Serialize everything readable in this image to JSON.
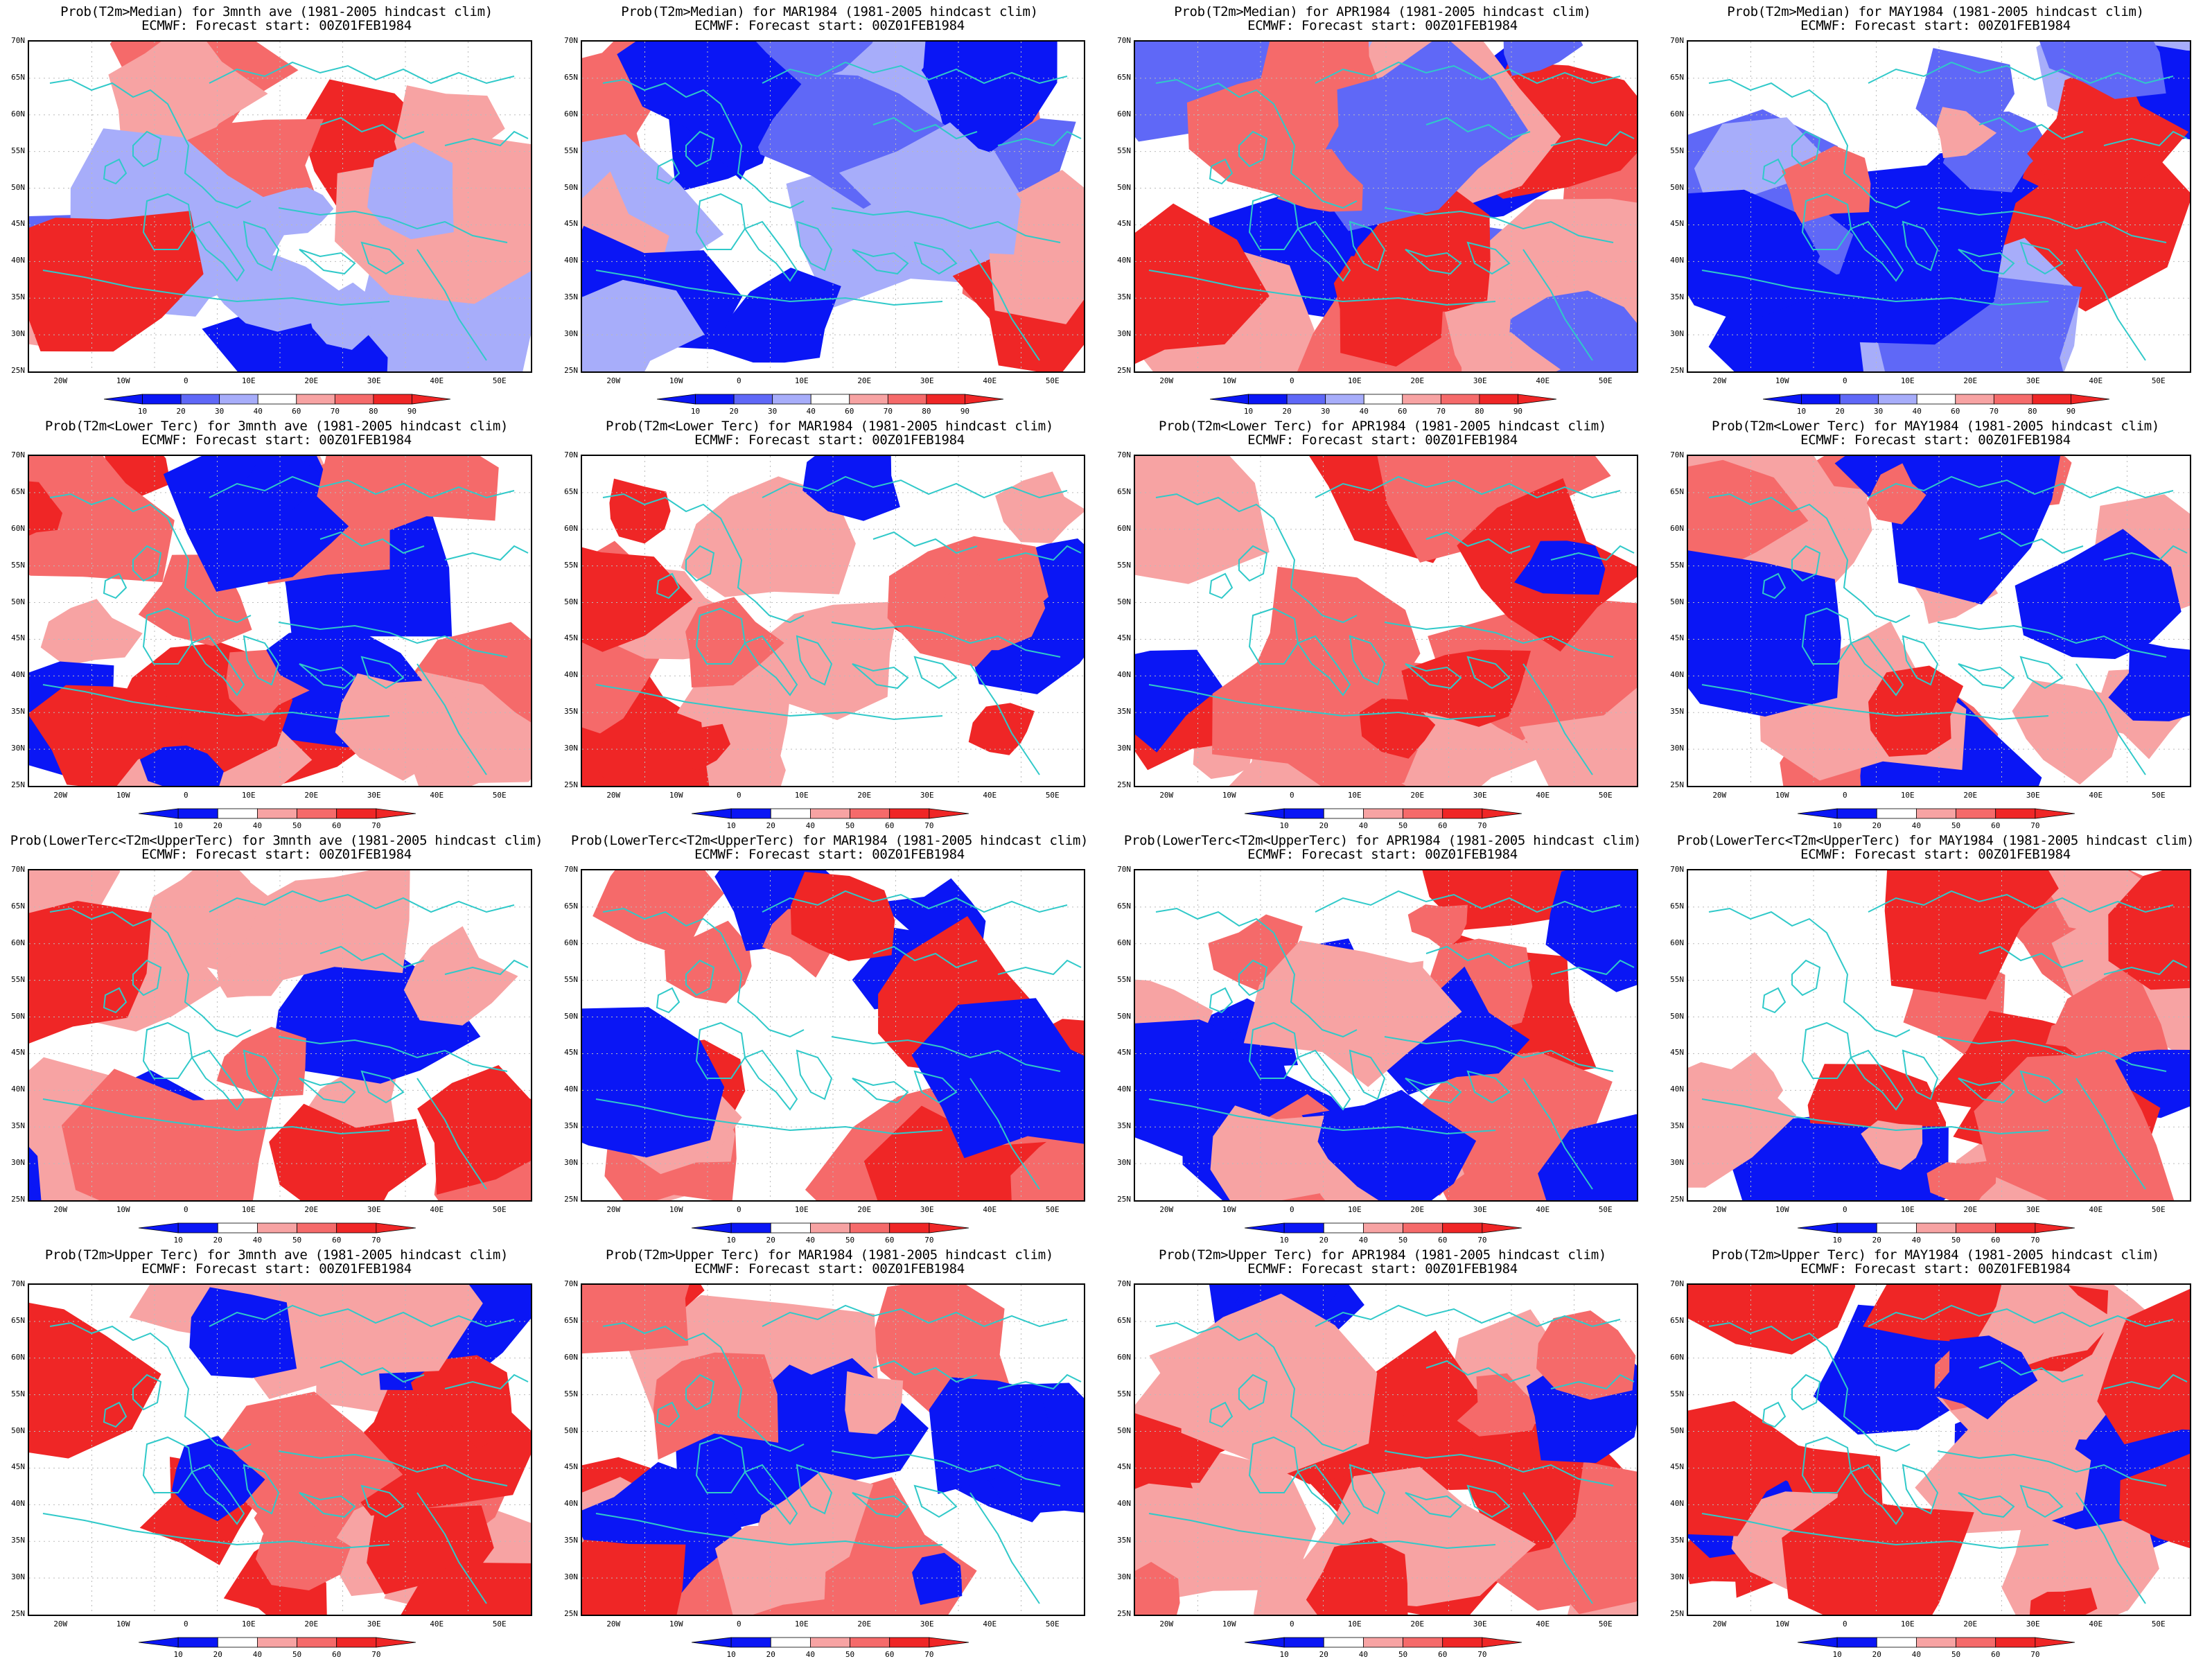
{
  "colors": {
    "deep_blue": "#0a16f5",
    "mid_blue": "#5f68f7",
    "light_blue": "#a7adfa",
    "light_red": "#f7a3a3",
    "mid_red": "#f56a6a",
    "deep_red": "#ef2626",
    "coast": "#30c9c9",
    "grid": "#bbbbbb"
  },
  "map": {
    "lat_labels": [
      "70N",
      "65N",
      "60N",
      "55N",
      "50N",
      "45N",
      "40N",
      "35N",
      "30N",
      "25N"
    ],
    "lon_labels": [
      "20W",
      "10W",
      "0",
      "10E",
      "20E",
      "30E",
      "40E",
      "50E"
    ]
  },
  "colorbars": {
    "median": [
      "10",
      "20",
      "30",
      "40",
      "60",
      "70",
      "80",
      "90"
    ],
    "tercile": [
      "10",
      "20",
      "40",
      "50",
      "60",
      "70"
    ]
  },
  "rows": [
    {
      "kind": "median",
      "panels": [
        {
          "title": "Prob(T2m>Median) for 3mnth ave (1981-2005 hindcast clim)",
          "subtitle": "ECMWF: Forecast start: 00Z01FEB1984"
        },
        {
          "title": "Prob(T2m>Median) for MAR1984 (1981-2005 hindcast clim)",
          "subtitle": "ECMWF: Forecast start: 00Z01FEB1984"
        },
        {
          "title": "Prob(T2m>Median) for APR1984 (1981-2005 hindcast clim)",
          "subtitle": "ECMWF: Forecast start: 00Z01FEB1984"
        },
        {
          "title": "Prob(T2m>Median) for MAY1984 (1981-2005 hindcast clim)",
          "subtitle": "ECMWF: Forecast start: 00Z01FEB1984"
        }
      ]
    },
    {
      "kind": "tercile",
      "panels": [
        {
          "title": "Prob(T2m<Lower Terc) for 3mnth ave (1981-2005 hindcast clim)",
          "subtitle": "ECMWF: Forecast start: 00Z01FEB1984"
        },
        {
          "title": "Prob(T2m<Lower Terc) for MAR1984 (1981-2005 hindcast clim)",
          "subtitle": "ECMWF: Forecast start: 00Z01FEB1984"
        },
        {
          "title": "Prob(T2m<Lower Terc) for APR1984 (1981-2005 hindcast clim)",
          "subtitle": "ECMWF: Forecast start: 00Z01FEB1984"
        },
        {
          "title": "Prob(T2m<Lower Terc) for MAY1984 (1981-2005 hindcast clim)",
          "subtitle": "ECMWF: Forecast start: 00Z01FEB1984"
        }
      ]
    },
    {
      "kind": "tercile",
      "panels": [
        {
          "title": "Prob(LowerTerc<T2m<UpperTerc) for 3mnth ave (1981-2005 hindcast clim)",
          "subtitle": "ECMWF: Forecast start: 00Z01FEB1984"
        },
        {
          "title": "Prob(LowerTerc<T2m<UpperTerc) for MAR1984 (1981-2005 hindcast clim)",
          "subtitle": "ECMWF: Forecast start: 00Z01FEB1984"
        },
        {
          "title": "Prob(LowerTerc<T2m<UpperTerc) for APR1984 (1981-2005 hindcast clim)",
          "subtitle": "ECMWF: Forecast start: 00Z01FEB1984"
        },
        {
          "title": "Prob(LowerTerc<T2m<UpperTerc) for MAY1984 (1981-2005 hindcast clim)",
          "subtitle": "ECMWF: Forecast start: 00Z01FEB1984"
        }
      ]
    },
    {
      "kind": "tercile",
      "panels": [
        {
          "title": "Prob(T2m>Upper Terc) for 3mnth ave (1981-2005 hindcast clim)",
          "subtitle": "ECMWF: Forecast start: 00Z01FEB1984"
        },
        {
          "title": "Prob(T2m>Upper Terc) for MAR1984 (1981-2005 hindcast clim)",
          "subtitle": "ECMWF: Forecast start: 00Z01FEB1984"
        },
        {
          "title": "Prob(T2m>Upper Terc) for APR1984 (1981-2005 hindcast clim)",
          "subtitle": "ECMWF: Forecast start: 00Z01FEB1984"
        },
        {
          "title": "Prob(T2m>Upper Terc) for MAY1984 (1981-2005 hindcast clim)",
          "subtitle": "ECMWF: Forecast start: 00Z01FEB1984"
        }
      ]
    }
  ]
}
